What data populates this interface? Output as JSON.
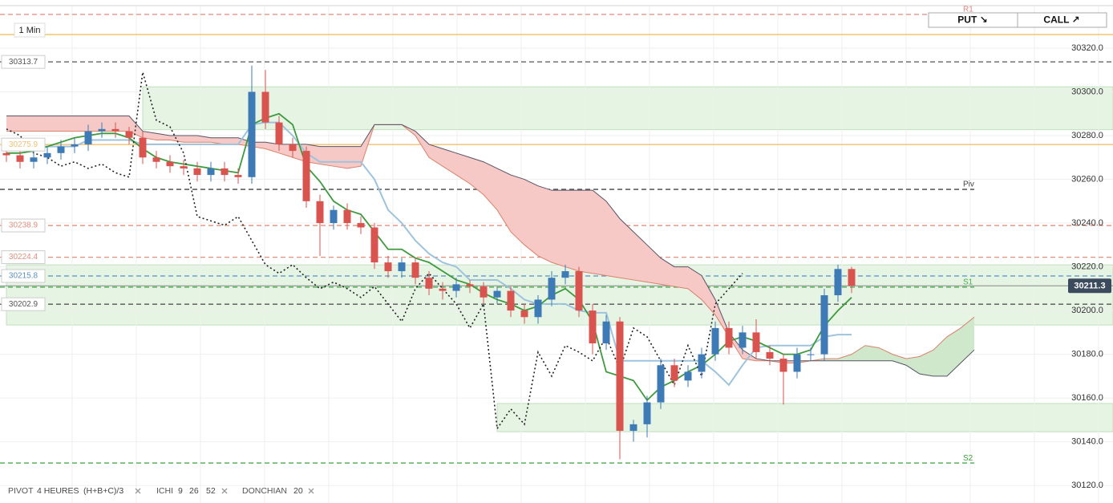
{
  "timeframe": "1 Min",
  "buttons": [
    "PUT ↘",
    "CALL ↗"
  ],
  "indicators_bar": [
    {
      "name": "PIVOT",
      "params": [
        "4 HEURES",
        "(H+B+C)/3"
      ]
    },
    {
      "name": "ICHI",
      "params": [
        9,
        26,
        52
      ]
    },
    {
      "name": "DONCHIAN",
      "params": [
        20
      ]
    }
  ],
  "chart_data": {
    "type": "candlestick",
    "up_color": "#3e7bb6",
    "down_color": "#d9534f",
    "open": [
      30272,
      30271,
      30268,
      30270,
      30272,
      30275,
      30276,
      30282,
      30283,
      30282,
      30279,
      30270,
      30268,
      30266,
      30265,
      30262,
      30265,
      30262,
      30261,
      30300,
      30286,
      30276,
      30273,
      30250,
      30240,
      30246,
      30240,
      30238,
      30222,
      30218,
      30222,
      30215,
      30210,
      30209,
      30212,
      30211,
      30206,
      30209,
      30200,
      30197,
      30205,
      30215,
      30218,
      30200,
      30185,
      30195,
      30145,
      30148,
      30158,
      30175,
      30168,
      30172,
      30180,
      30192,
      30183,
      30190,
      30181,
      30178,
      30172,
      30180,
      30180,
      30207,
      30219
    ],
    "high": [
      30275,
      30274,
      30273,
      30275,
      30278,
      30279,
      30285,
      30286,
      30286,
      30284,
      30282,
      30273,
      30271,
      30269,
      30268,
      30268,
      30268,
      30265,
      30312,
      30310,
      30289,
      30279,
      30275,
      30253,
      30248,
      30249,
      30243,
      30240,
      30225,
      30224,
      30224,
      30218,
      30213,
      30215,
      30214,
      30213,
      30211,
      30211,
      30203,
      30207,
      30218,
      30221,
      30220,
      30203,
      30198,
      30197,
      30150,
      30161,
      30178,
      30178,
      30175,
      30183,
      30195,
      30195,
      30193,
      30196,
      30184,
      30180,
      30183,
      30183,
      30210,
      30221,
      30220
    ],
    "low": [
      30268,
      30265,
      30265,
      30267,
      30269,
      30272,
      30273,
      30279,
      30279,
      30276,
      30267,
      30265,
      30263,
      30262,
      30259,
      30259,
      30259,
      30258,
      30258,
      30283,
      30273,
      30270,
      30247,
      30225,
      30237,
      30237,
      30235,
      30219,
      30215,
      30215,
      30212,
      30207,
      30205,
      30206,
      30208,
      30203,
      30203,
      30197,
      30194,
      30194,
      30202,
      30212,
      30197,
      30180,
      30182,
      30132,
      30140,
      30142,
      30155,
      30165,
      30165,
      30169,
      30177,
      30180,
      30180,
      30178,
      30175,
      30157,
      30169,
      30177,
      30177,
      30204,
      30208
    ],
    "close": [
      30271,
      30268,
      30270,
      30272,
      30275,
      30276,
      30282,
      30283,
      30282,
      30279,
      30270,
      30268,
      30266,
      30265,
      30262,
      30265,
      30262,
      30261,
      30300,
      30286,
      30276,
      30273,
      30250,
      30240,
      30246,
      30240,
      30238,
      30222,
      30218,
      30222,
      30215,
      30210,
      30209,
      30212,
      30211,
      30206,
      30209,
      30200,
      30197,
      30205,
      30215,
      30218,
      30200,
      30185,
      30195,
      30145,
      30148,
      30158,
      30175,
      30168,
      30172,
      30180,
      30192,
      30183,
      30190,
      30181,
      30178,
      30172,
      30180,
      30180,
      30207,
      30219,
      30211.3
    ],
    "last_price": 30211.3,
    "ylim": [
      30112,
      30342
    ],
    "yticks": [
      {
        "value": 30120,
        "label": "30120.0"
      },
      {
        "value": 30140,
        "label": "30140.0"
      },
      {
        "value": 30160,
        "label": "30160.0"
      },
      {
        "value": 30180,
        "label": "30180.0"
      },
      {
        "value": 30200,
        "label": "30200.0"
      },
      {
        "value": 30220,
        "label": "30220.0"
      },
      {
        "value": 30240,
        "label": "30240.0"
      },
      {
        "value": 30260,
        "label": "30260.0"
      },
      {
        "value": 30280,
        "label": "30280.0"
      },
      {
        "value": 30300,
        "label": "30300.0"
      },
      {
        "value": 30320,
        "label": "30320.0"
      }
    ],
    "zones": [
      {
        "low": 30282.7,
        "high": 30302.3,
        "start": 10
      },
      {
        "low": 30193.4,
        "high": 30220.9,
        "start": 0
      },
      {
        "low": 30144.6,
        "high": 30157.5,
        "start": 36
      }
    ],
    "levels": [
      {
        "value": 30335.4,
        "label": "R1",
        "color": "#e08a80",
        "style": "dashed"
      },
      {
        "value": 30326.2,
        "color": "#f0c060",
        "style": "solid"
      },
      {
        "value": 30313.7,
        "color": "#555555",
        "style": "dashed",
        "tag": true
      },
      {
        "value": 30275.9,
        "color": "#f0c070",
        "style": "solid",
        "tag": true
      },
      {
        "value": 30255.4,
        "label": "Piv",
        "color": "#444444",
        "style": "dashed"
      },
      {
        "value": 30238.9,
        "color": "#e0907f",
        "style": "dashed",
        "tag": true
      },
      {
        "value": 30224.4,
        "color": "#e0907f",
        "style": "dashed",
        "tag": true
      },
      {
        "value": 30215.8,
        "color": "#5a8fc0",
        "style": "dashed",
        "tag": true
      },
      {
        "value": 30210.7,
        "label": "S1",
        "color": "#4caf50",
        "style": "dashed"
      },
      {
        "value": 30202.9,
        "color": "#555555",
        "style": "dashed",
        "tag": true
      },
      {
        "value": 30130.3,
        "label": "S2",
        "color": "#3aa03a",
        "style": "dashed"
      }
    ],
    "ichimoku": {
      "tenkan": {
        "color": "#3d9a3d",
        "values": [
          30272,
          30272,
          30273,
          30275,
          30277,
          30279,
          30280,
          30281,
          30281,
          30279,
          30274,
          30270,
          30268,
          30267,
          30266,
          30265,
          30264,
          30263,
          30285,
          30288,
          30290,
          30285,
          30266,
          30259,
          30250,
          30246,
          30244,
          30236,
          30228,
          30228,
          30224,
          30222,
          30218,
          30214,
          30212,
          30208,
          30205,
          30203,
          30200,
          30202,
          30207,
          30210,
          30205,
          30195,
          30172,
          30170,
          30168,
          30159,
          30165,
          30168,
          30172,
          30175,
          30180,
          30186,
          30188,
          30186,
          30183,
          30180,
          30180,
          30182,
          30193,
          30200,
          30206
        ]
      },
      "kijun": {
        "color": "#9ec3dd",
        "values": [
          30275,
          30275,
          30275,
          30275,
          30275,
          30275,
          30278,
          30278,
          30278,
          30278,
          30276,
          30276,
          30276,
          30276,
          30276,
          30276,
          30276,
          30276,
          30285,
          30286,
          30286,
          30280,
          30272,
          30268,
          30268,
          30268,
          30268,
          30260,
          30246,
          30240,
          30232,
          30226,
          30222,
          30220,
          30214,
          30214,
          30214,
          30210,
          30205,
          30203,
          30203,
          30203,
          30200,
          30199,
          30199,
          30177,
          30177,
          30177,
          30177,
          30177,
          30177,
          30177,
          30172,
          30166,
          30175,
          30183,
          30184,
          30184,
          30184,
          30184,
          30188,
          30189,
          30189
        ]
      },
      "chikou": {
        "color": "#222222",
        "values": [
          30283,
          30280,
          30272,
          30270,
          30266,
          30268,
          30265,
          30267,
          30263,
          30261,
          30309,
          30287,
          30284,
          30272,
          30243,
          30241,
          30239,
          30243,
          30232,
          30221,
          30217,
          30221,
          30215,
          30210,
          30213,
          30210,
          30206,
          30211,
          30203,
          30195,
          30210,
          30217,
          30210,
          30203,
          30192,
          30203,
          30146,
          30155,
          30148,
          30181,
          30170,
          30184,
          30181,
          30177,
          30188,
          30173,
          30192,
          30188,
          30177,
          30166,
          30184,
          30170,
          30203,
          30210,
          30217
        ]
      },
      "span_a": {
        "color": "#d9826a",
        "values": [
          30282,
          30282,
          30282,
          30282,
          30282,
          30282,
          30282,
          30282,
          30282,
          30282,
          30279,
          30278,
          30278,
          30277,
          30277,
          30277,
          30276,
          30276,
          30275,
          30274,
          30272,
          30270,
          30268,
          30267,
          30266,
          30265,
          30266,
          30285,
          30285,
          30285,
          30280,
          30270,
          30266,
          30262,
          30258,
          30253,
          30246,
          30236,
          30230,
          30225,
          30222,
          30220,
          30218,
          30217,
          30216,
          30215,
          30214,
          30213,
          30212,
          30211,
          30210,
          30205,
          30198,
          30188,
          30178,
          30177,
          30177,
          30176,
          30176,
          30177,
          30178,
          30178,
          30180,
          30184,
          30183,
          30180,
          30178,
          30179,
          30182,
          30188,
          30192,
          30197
        ]
      },
      "span_b": {
        "color": "#555566",
        "values": [
          30289,
          30289,
          30289,
          30289,
          30289,
          30289,
          30289,
          30289,
          30289,
          30289,
          30282,
          30281,
          30280,
          30280,
          30280,
          30279,
          30279,
          30279,
          30277,
          30277,
          30276,
          30276,
          30276,
          30275,
          30275,
          30275,
          30275,
          30285,
          30285,
          30285,
          30282,
          30276,
          30274,
          30272,
          30270,
          30268,
          30265,
          30262,
          30260,
          30257,
          30255,
          30255,
          30255,
          30255,
          30250,
          30242,
          30236,
          30230,
          30224,
          30220,
          30220,
          30216,
          30205,
          30190,
          30182,
          30178,
          30177,
          30177,
          30177,
          30177,
          30177,
          30177,
          30177,
          30177,
          30177,
          30177,
          30175,
          30171,
          30170,
          30170,
          30176,
          30182
        ]
      },
      "bull_fill": "#cfe8cc",
      "bear_fill": "#f6c9c6"
    }
  }
}
